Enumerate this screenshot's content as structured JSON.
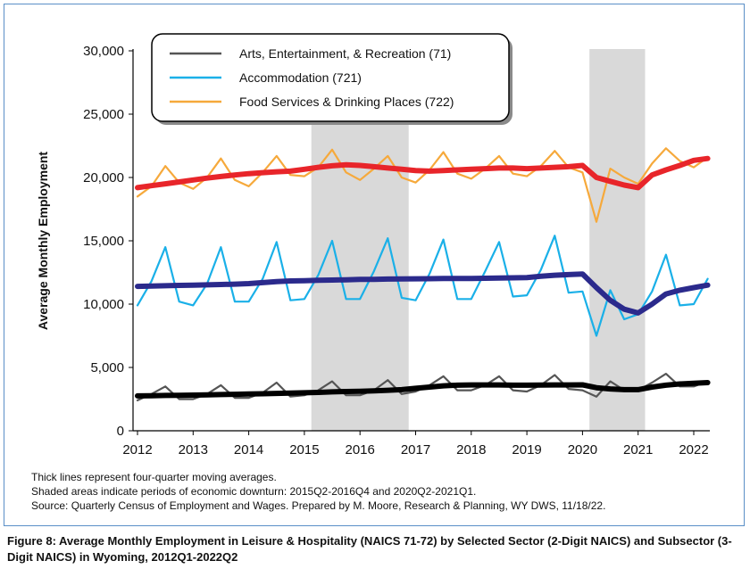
{
  "chart_data": {
    "type": "line",
    "ylabel": "Average Monthly Employment",
    "xlabel": "",
    "ylim": [
      0,
      30000
    ],
    "y_ticks": [
      0,
      5000,
      10000,
      15000,
      20000,
      25000,
      30000
    ],
    "y_tick_labels": [
      "0",
      "5,000",
      "10,000",
      "15,000",
      "20,000",
      "25,000",
      "30,000"
    ],
    "x_tick_labels": [
      "2012",
      "2013",
      "2014",
      "2015",
      "2016",
      "2017",
      "2018",
      "2019",
      "2020",
      "2021",
      "2022"
    ],
    "legend_position": "top-left",
    "grid": false,
    "x_start": "2012Q1",
    "shaded_periods": [
      [
        "2015Q2",
        "2016Q4"
      ],
      [
        "2020Q2",
        "2021Q1"
      ]
    ],
    "x": [
      "2012Q1",
      "2012Q2",
      "2012Q3",
      "2012Q4",
      "2013Q1",
      "2013Q2",
      "2013Q3",
      "2013Q4",
      "2014Q1",
      "2014Q2",
      "2014Q3",
      "2014Q4",
      "2015Q1",
      "2015Q2",
      "2015Q3",
      "2015Q4",
      "2016Q1",
      "2016Q2",
      "2016Q3",
      "2016Q4",
      "2017Q1",
      "2017Q2",
      "2017Q3",
      "2017Q4",
      "2018Q1",
      "2018Q2",
      "2018Q3",
      "2018Q4",
      "2019Q1",
      "2019Q2",
      "2019Q3",
      "2019Q4",
      "2020Q1",
      "2020Q2",
      "2020Q3",
      "2020Q4",
      "2021Q1",
      "2021Q2",
      "2021Q3",
      "2021Q4",
      "2022Q1",
      "2022Q2"
    ],
    "series": [
      {
        "name": "Arts, Entertainment, & Recreation (71)",
        "color": "#555555",
        "style": "thin",
        "values": [
          2400,
          2900,
          3500,
          2500,
          2500,
          2900,
          3600,
          2600,
          2600,
          3000,
          3800,
          2700,
          2800,
          3200,
          3900,
          2800,
          2800,
          3200,
          4000,
          2900,
          3100,
          3600,
          4300,
          3200,
          3200,
          3600,
          4300,
          3200,
          3100,
          3600,
          4400,
          3300,
          3200,
          2700,
          3900,
          3200,
          3200,
          3800,
          4500,
          3500,
          3500,
          3900
        ]
      },
      {
        "name": "Accommodation (721)",
        "color": "#1ab0e8",
        "style": "thin",
        "values": [
          9900,
          11800,
          14500,
          10200,
          9900,
          11600,
          14500,
          10200,
          10200,
          12000,
          14900,
          10300,
          10400,
          12300,
          15000,
          10400,
          10400,
          12600,
          15200,
          10500,
          10300,
          12400,
          15100,
          10400,
          10400,
          12600,
          14900,
          10600,
          10700,
          12700,
          15400,
          10900,
          11000,
          7500,
          11100,
          8800,
          9200,
          11000,
          13900,
          9900,
          10000,
          12000
        ]
      },
      {
        "name": "Food Services & Drinking Places (722)",
        "color": "#f6a93b",
        "style": "thin",
        "values": [
          18500,
          19300,
          20900,
          19600,
          19100,
          20000,
          21500,
          19800,
          19300,
          20400,
          21700,
          20200,
          20100,
          20800,
          22200,
          20400,
          19800,
          20700,
          21700,
          20000,
          19600,
          20600,
          22000,
          20300,
          19900,
          20700,
          21700,
          20300,
          20100,
          20900,
          22100,
          20800,
          20400,
          16500,
          20700,
          20000,
          19500,
          21100,
          22300,
          21300,
          20800,
          21600
        ]
      },
      {
        "name": "Arts, Entertainment, & Recreation (71) four-quarter moving average",
        "color": "#000000",
        "style": "thick",
        "values": [
          2750,
          2770,
          2790,
          2800,
          2820,
          2840,
          2860,
          2880,
          2900,
          2920,
          2950,
          2980,
          3000,
          3030,
          3070,
          3100,
          3120,
          3150,
          3200,
          3250,
          3350,
          3450,
          3550,
          3600,
          3620,
          3620,
          3620,
          3600,
          3600,
          3610,
          3620,
          3620,
          3630,
          3400,
          3300,
          3250,
          3250,
          3450,
          3600,
          3700,
          3750,
          3800
        ]
      },
      {
        "name": "Accommodation (721) four-quarter moving average",
        "color": "#2b2a8c",
        "style": "thick",
        "values": [
          11400,
          11420,
          11450,
          11480,
          11500,
          11520,
          11550,
          11580,
          11620,
          11700,
          11780,
          11830,
          11850,
          11880,
          11900,
          11920,
          11950,
          11960,
          11980,
          11990,
          12000,
          12010,
          12020,
          12020,
          12030,
          12040,
          12060,
          12080,
          12100,
          12200,
          12280,
          12330,
          12380,
          11300,
          10300,
          9600,
          9300,
          10000,
          10800,
          11100,
          11300,
          11500
        ]
      },
      {
        "name": "Food Services & Drinking Places (722) four-quarter moving average",
        "color": "#e8252a",
        "style": "thick",
        "values": [
          19200,
          19350,
          19500,
          19650,
          19800,
          19950,
          20080,
          20200,
          20300,
          20380,
          20450,
          20500,
          20650,
          20800,
          20920,
          21000,
          20950,
          20850,
          20750,
          20650,
          20550,
          20500,
          20550,
          20600,
          20650,
          20700,
          20750,
          20750,
          20700,
          20750,
          20800,
          20850,
          20950,
          20000,
          19700,
          19400,
          19200,
          20200,
          20600,
          20950,
          21350,
          21500
        ]
      }
    ]
  },
  "notes": {
    "line1": "Thick lines represent four-quarter moving averages.",
    "line2": "Shaded areas indicate periods of economic downturn: 2015Q2-2016Q4 and 2020Q2-2021Q1.",
    "line3": "Source: Quarterly Census of Employment and Wages. Prepared by M. Moore, Research & Planning, WY DWS, 11/18/22."
  },
  "caption": "Figure 8: Average Monthly Employment in Leisure & Hospitality (NAICS 71-72) by Selected Sector (2-Digit NAICS) and Subsector (3-Digit NAICS) in Wyoming, 2012Q1-2022Q2",
  "colors": {
    "shade": "#d9d9d9",
    "frame": "#5a8fc7"
  }
}
